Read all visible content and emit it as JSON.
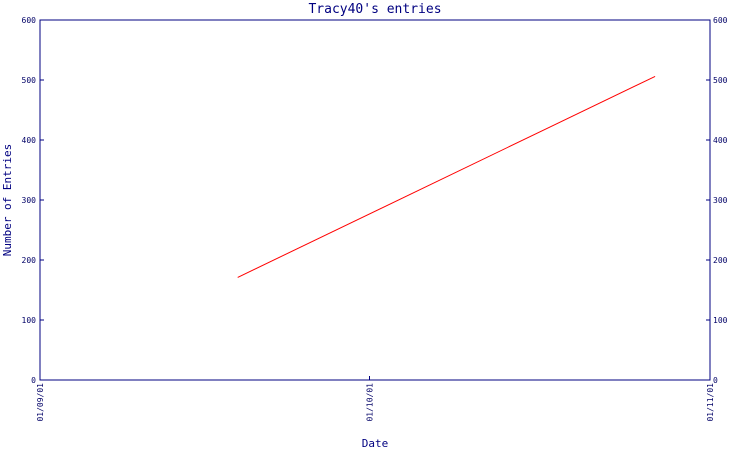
{
  "chart_data": {
    "type": "line",
    "title": "Tracy40's entries",
    "xlabel": "Date",
    "ylabel": "Number of Entries",
    "x_ticks": [
      "01/09/01",
      "01/10/01",
      "01/11/01"
    ],
    "y_ticks": [
      0,
      100,
      200,
      300,
      400,
      500,
      600
    ],
    "ylim": [
      0,
      600
    ],
    "xlim": [
      "01/09/01",
      "01/11/01"
    ],
    "grid": false,
    "series": [
      {
        "x": [
          "01/09/19",
          "01/10/27"
        ],
        "y": [
          171,
          506
        ],
        "color": "#ff0000"
      }
    ],
    "colors": {
      "axis": "#000080",
      "line": "#ff0000"
    }
  }
}
